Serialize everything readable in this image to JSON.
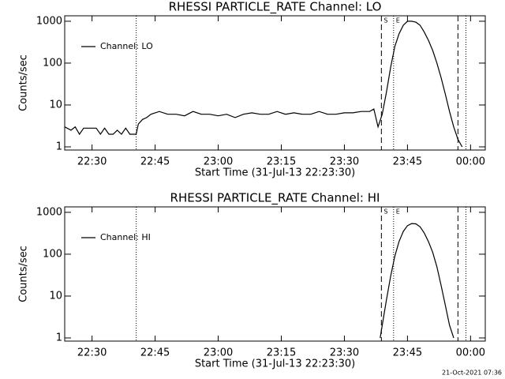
{
  "chart_data": [
    {
      "type": "line",
      "title": "RHESSI PARTICLE_RATE Channel: LO",
      "xlabel": "Start Time (31-Jul-13 22:23:30)",
      "ylabel": "Counts/sec",
      "log_y": true,
      "xlim": [
        23.5,
        123.5
      ],
      "ylim": [
        0.84,
        1350
      ],
      "xticks": [
        {
          "value": 30,
          "label": "22:30"
        },
        {
          "value": 45,
          "label": "22:45"
        },
        {
          "value": 60,
          "label": "23:00"
        },
        {
          "value": 75,
          "label": "23:15"
        },
        {
          "value": 90,
          "label": "23:30"
        },
        {
          "value": 105,
          "label": "23:45"
        },
        {
          "value": 120,
          "label": "00:00"
        }
      ],
      "yticks": [
        1,
        10,
        100,
        1000
      ],
      "legend": "upper left",
      "vlines": [
        {
          "x": 40.5,
          "style": "dotted"
        },
        {
          "x": 98.8,
          "style": "dashed"
        },
        {
          "x": 101.7,
          "style": "dotted"
        },
        {
          "x": 117,
          "style": "dashed"
        },
        {
          "x": 118.9,
          "style": "dotted"
        }
      ],
      "markers": [
        {
          "text": "S",
          "x": 98.8
        },
        {
          "text": "E",
          "x": 101.7
        }
      ],
      "x": [
        23.5,
        25,
        26,
        27,
        28,
        29,
        30,
        31,
        32,
        33,
        34,
        35,
        36,
        37,
        38,
        39,
        40,
        40.5,
        41,
        42,
        43,
        44,
        46,
        48,
        50,
        52,
        54,
        56,
        58,
        60,
        62,
        64,
        66,
        68,
        70,
        72,
        74,
        76,
        78,
        80,
        82,
        84,
        86,
        88,
        90,
        92,
        94,
        96,
        97,
        98,
        99,
        100,
        101,
        102,
        103,
        104,
        105,
        106,
        107,
        108,
        109,
        110,
        111,
        112,
        113,
        114,
        115,
        116,
        117,
        118
      ],
      "series": [
        {
          "name": "Channel: LO",
          "color": "#000000",
          "values": [
            3,
            2.5,
            3,
            2,
            2.8,
            2.8,
            2.8,
            2.8,
            2,
            2.8,
            2,
            2,
            2.5,
            2,
            2.8,
            2,
            2,
            2,
            3.5,
            4.5,
            5,
            6,
            7,
            6,
            6,
            5.5,
            7,
            6,
            6,
            5.5,
            6,
            5,
            6,
            6.5,
            6,
            6,
            7,
            6,
            6.5,
            6,
            6,
            7,
            6,
            6,
            6.5,
            6.5,
            7,
            7,
            8,
            3,
            6,
            20,
            80,
            250,
            500,
            800,
            1000,
            1000,
            950,
            800,
            550,
            350,
            200,
            100,
            45,
            18,
            7,
            3,
            1.5,
            1
          ]
        }
      ]
    },
    {
      "type": "line",
      "title": "RHESSI PARTICLE_RATE Channel: HI",
      "xlabel": "Start Time (31-Jul-13 22:23:30)",
      "ylabel": "Counts/sec",
      "log_y": true,
      "xlim": [
        23.5,
        123.5
      ],
      "ylim": [
        0.84,
        1350
      ],
      "xticks": [
        {
          "value": 30,
          "label": "22:30"
        },
        {
          "value": 45,
          "label": "22:45"
        },
        {
          "value": 60,
          "label": "23:00"
        },
        {
          "value": 75,
          "label": "23:15"
        },
        {
          "value": 90,
          "label": "23:30"
        },
        {
          "value": 105,
          "label": "23:45"
        },
        {
          "value": 120,
          "label": "00:00"
        }
      ],
      "yticks": [
        1,
        10,
        100,
        1000
      ],
      "legend": "upper left",
      "vlines": [
        {
          "x": 40.5,
          "style": "dotted"
        },
        {
          "x": 98.8,
          "style": "dashed"
        },
        {
          "x": 101.7,
          "style": "dotted"
        },
        {
          "x": 117,
          "style": "dashed"
        },
        {
          "x": 118.9,
          "style": "dotted"
        }
      ],
      "markers": [
        {
          "text": "S",
          "x": 98.8
        },
        {
          "text": "E",
          "x": 101.7
        }
      ],
      "x": [
        98.5,
        99,
        100,
        101,
        102,
        103,
        104,
        105,
        106,
        107,
        108,
        109,
        110,
        111,
        112,
        113,
        114,
        115,
        116
      ],
      "series": [
        {
          "name": "Channel: HI",
          "color": "#000000",
          "values": [
            1,
            2,
            8,
            30,
            90,
            200,
            350,
            480,
            540,
            530,
            450,
            320,
            200,
            110,
            50,
            18,
            6,
            2,
            1
          ]
        }
      ]
    }
  ],
  "footer": "21-Oct-2021 07:36"
}
